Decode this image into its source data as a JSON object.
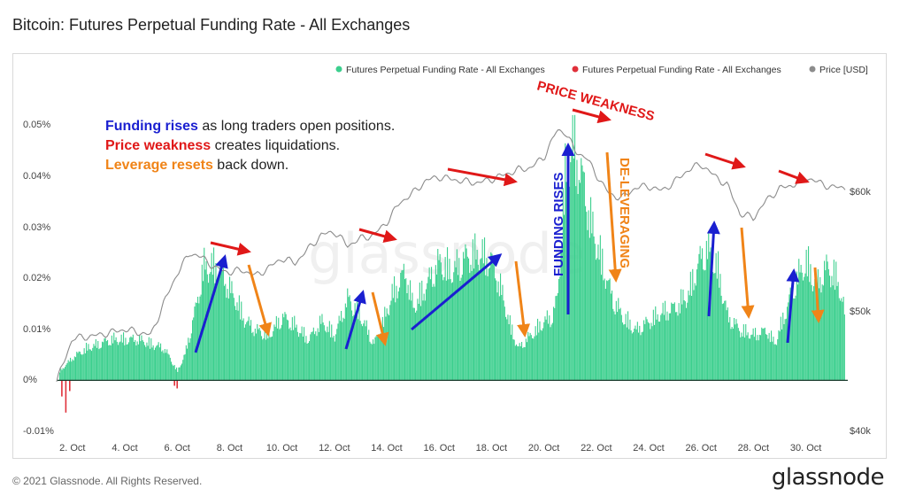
{
  "header": {
    "title": "Bitcoin: Futures Perpetual Funding Rate - All Exchanges"
  },
  "footer": {
    "copyright": "© 2021 Glassnode. All Rights Reserved.",
    "brand": "glassnode"
  },
  "watermark": "glassnode",
  "colors": {
    "funding_positive": "#3ccf8e",
    "funding_negative": "#e0303a",
    "price": "#8c8c8c",
    "blue": "#1a1fd0",
    "red": "#e01818",
    "orange": "#f08418"
  },
  "annotations": {
    "line1_bold": "Funding rises",
    "line1_rest": " as long traders open positions.",
    "line2_bold": "Price weakness",
    "line2_rest": " creates liquidations.",
    "line3_bold": "Leverage resets",
    "line3_rest": " back down.",
    "price_weakness": "PRICE WEAKNESS",
    "funding_rises": "FUNDING RISES",
    "de_leveraging": "DE-LEVERAGING"
  },
  "chart_data": {
    "type": "bar",
    "title": "Bitcoin: Futures Perpetual Funding Rate - All Exchanges",
    "legend": {
      "placement": "top-right",
      "entries": [
        "Futures Perpetual Funding Rate - All Exchanges",
        "Futures Perpetual Funding Rate - All Exchanges",
        "Price [USD]"
      ]
    },
    "x_ticks": [
      "2. Oct",
      "4. Oct",
      "6. Oct",
      "8. Oct",
      "10. Oct",
      "12. Oct",
      "14. Oct",
      "16. Oct",
      "18. Oct",
      "20. Oct",
      "22. Oct",
      "24. Oct",
      "26. Oct",
      "28. Oct",
      "30. Oct"
    ],
    "x_range_days": [
      1.4,
      31.6
    ],
    "y_left_ticks": [
      "-0.01%",
      "0%",
      "0.01%",
      "0.02%",
      "0.03%",
      "0.04%",
      "0.05%"
    ],
    "y_left_range": [
      -0.01,
      0.055
    ],
    "y_right_ticks": [
      "$40k",
      "$50k",
      "$60k"
    ],
    "y_right_range": [
      40000,
      70000
    ],
    "grid": false,
    "series": [
      {
        "name": "Futures Perpetual Funding Rate - All Exchanges",
        "kind": "bar",
        "x": [
          1.5,
          2.0,
          2.5,
          3.0,
          3.5,
          4.0,
          4.5,
          5.0,
          5.5,
          5.8,
          6.0,
          6.3,
          6.7,
          7.0,
          7.5,
          7.8,
          8.2,
          8.6,
          9.0,
          9.5,
          10.0,
          10.5,
          11.0,
          11.5,
          12.0,
          12.5,
          13.0,
          13.5,
          13.8,
          14.2,
          14.7,
          15.0,
          15.5,
          16.0,
          16.5,
          17.0,
          17.5,
          18.0,
          18.3,
          18.7,
          19.0,
          19.5,
          20.0,
          20.3,
          20.5,
          20.8,
          21.1,
          21.5,
          21.8,
          22.2,
          22.6,
          23.0,
          23.5,
          24.0,
          24.5,
          25.0,
          25.5,
          25.9,
          26.2,
          26.6,
          27.0,
          27.5,
          28.0,
          28.5,
          28.8,
          29.2,
          29.6,
          30.0,
          30.4,
          30.8,
          31.2,
          31.5
        ],
        "values": [
          0.002,
          0.005,
          0.007,
          0.008,
          0.009,
          0.009,
          0.009,
          0.008,
          0.007,
          0.004,
          0.002,
          0.006,
          0.016,
          0.025,
          0.025,
          0.022,
          0.018,
          0.013,
          0.011,
          0.01,
          0.014,
          0.012,
          0.009,
          0.013,
          0.01,
          0.018,
          0.014,
          0.008,
          0.012,
          0.019,
          0.024,
          0.016,
          0.021,
          0.026,
          0.024,
          0.027,
          0.028,
          0.026,
          0.021,
          0.012,
          0.007,
          0.01,
          0.013,
          0.014,
          0.018,
          0.045,
          0.052,
          0.043,
          0.034,
          0.026,
          0.018,
          0.014,
          0.011,
          0.013,
          0.015,
          0.016,
          0.019,
          0.026,
          0.029,
          0.025,
          0.014,
          0.011,
          0.01,
          0.011,
          0.008,
          0.015,
          0.022,
          0.026,
          0.021,
          0.025,
          0.022,
          0.014
        ]
      },
      {
        "name": "Futures Perpetual Funding Rate - All Exchanges",
        "kind": "bar-negative",
        "x": [
          1.6,
          1.75,
          1.9,
          5.9,
          6.0
        ],
        "values": [
          -0.003,
          -0.006,
          -0.002,
          -0.001,
          -0.0015
        ]
      },
      {
        "name": "Price [USD]",
        "kind": "line",
        "axis": "right",
        "x": [
          1.4,
          2.0,
          3.0,
          4.0,
          5.0,
          5.5,
          6.0,
          6.5,
          7.0,
          7.5,
          8.0,
          8.5,
          9.0,
          9.5,
          10.0,
          10.5,
          11.0,
          11.5,
          12.0,
          12.5,
          13.0,
          13.5,
          14.0,
          14.5,
          15.0,
          15.5,
          16.0,
          16.5,
          17.0,
          17.5,
          18.0,
          18.5,
          19.0,
          19.5,
          20.0,
          20.5,
          20.8,
          21.2,
          21.6,
          22.0,
          22.5,
          23.0,
          23.5,
          24.0,
          24.5,
          25.0,
          25.5,
          26.0,
          26.5,
          27.0,
          27.5,
          28.0,
          28.5,
          29.0,
          29.5,
          30.0,
          30.5,
          31.0,
          31.5
        ],
        "values": [
          44500,
          48200,
          48500,
          49000,
          48500,
          51300,
          53800,
          55600,
          55100,
          54200,
          53900,
          54100,
          53600,
          54300,
          55100,
          54700,
          55900,
          57100,
          57400,
          56200,
          56800,
          57100,
          58200,
          59900,
          60700,
          61800,
          62100,
          61900,
          61700,
          61600,
          61900,
          62300,
          62700,
          62900,
          63800,
          66100,
          66000,
          64300,
          63800,
          62300,
          60600,
          60300,
          61200,
          61300,
          60900,
          61700,
          62700,
          63200,
          62200,
          61400,
          58900,
          58600,
          60100,
          61100,
          61400,
          62100,
          61600,
          61200,
          61200
        ]
      }
    ]
  }
}
